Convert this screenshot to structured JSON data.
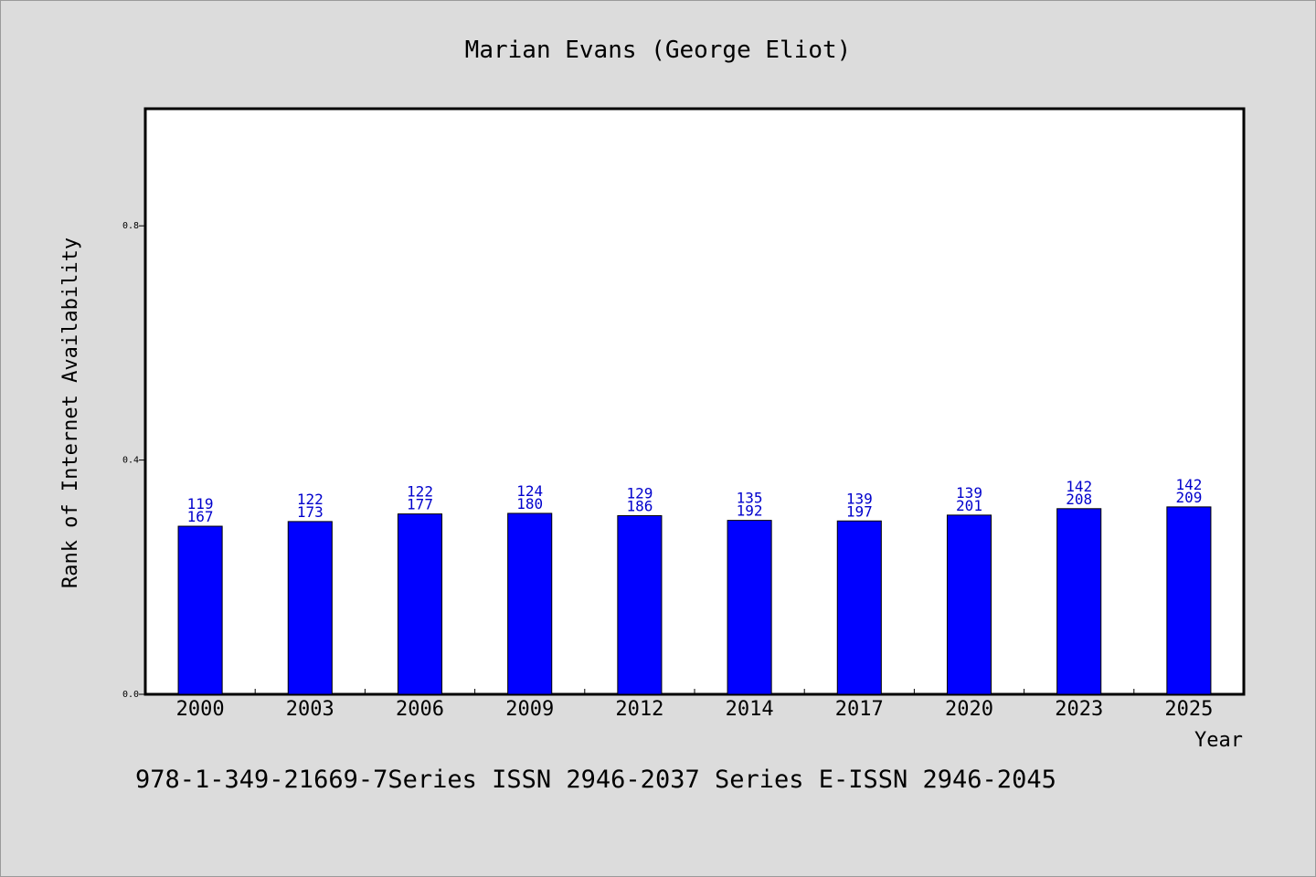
{
  "chart_data": {
    "type": "bar",
    "title": "Marian Evans (George Eliot)",
    "xlabel": "Year",
    "ylabel": "Rank of Internet Availability",
    "ylim": [
      0,
      1.0
    ],
    "yticks": [
      "0.0",
      "0.4",
      "0.8"
    ],
    "ytick_values": [
      0.0,
      0.4,
      0.8
    ],
    "categories": [
      "2000",
      "2003",
      "2006",
      "2009",
      "2012",
      "2014",
      "2017",
      "2020",
      "2023",
      "2025"
    ],
    "values": [
      0.287,
      0.295,
      0.308,
      0.309,
      0.305,
      0.297,
      0.296,
      0.306,
      0.317,
      0.32
    ],
    "labels_top": [
      "119",
      "122",
      "122",
      "124",
      "129",
      "135",
      "139",
      "139",
      "142",
      "142"
    ],
    "labels_bottom": [
      "167",
      "173",
      "177",
      "180",
      "186",
      "192",
      "197",
      "201",
      "208",
      "209"
    ],
    "bar_color": "#0000ff",
    "label_color": "#0000cc",
    "grid": false
  },
  "footer": "978-1-349-21669-7Series ISSN 2946-2037 Series E-ISSN 2946-2045"
}
